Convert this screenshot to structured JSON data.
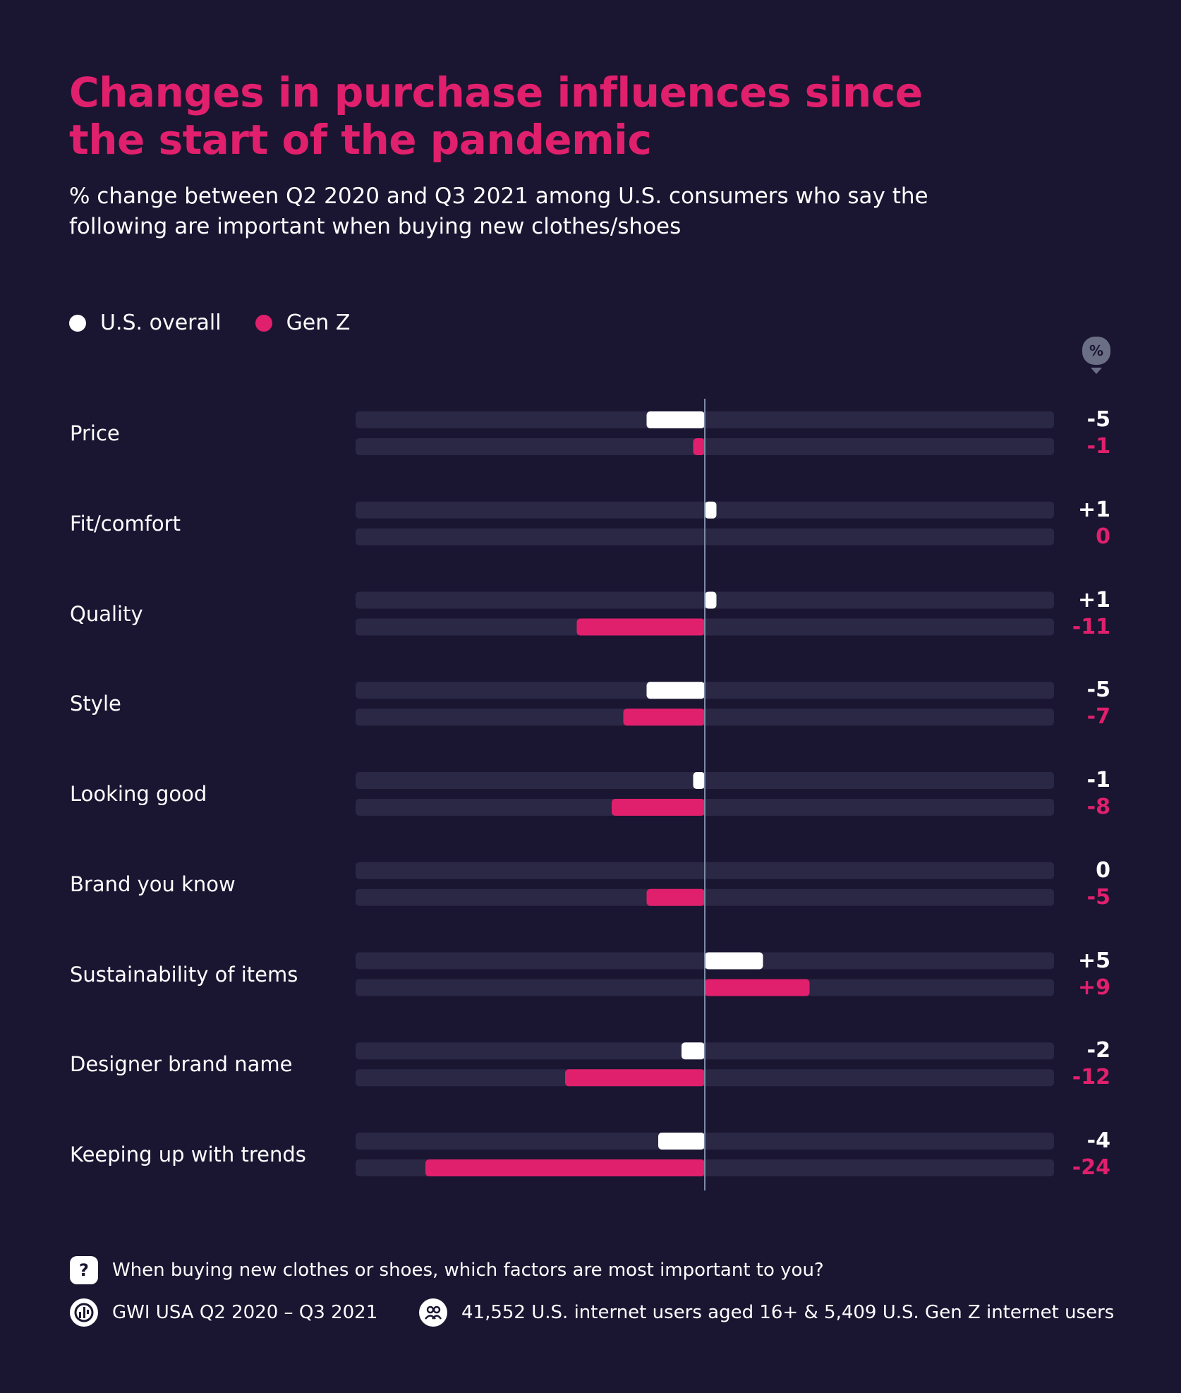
{
  "chart_data": {
    "type": "bar",
    "orientation": "horizontal-diverging",
    "title": "Changes in purchase influences since the start of the pandemic",
    "subtitle": "% change between Q2 2020 and Q3 2021 among U.S. consumers who say the following are important when buying new clothes/shoes",
    "unit_badge": "%",
    "categories": [
      "Price",
      "Fit/comfort",
      "Quality",
      "Style",
      "Looking good",
      "Brand you know",
      "Sustainability of items",
      "Designer brand name",
      "Keeping up with trends"
    ],
    "series": [
      {
        "name": "U.S. overall",
        "color": "#ffffff",
        "values": [
          -5,
          1,
          1,
          -5,
          -1,
          0,
          5,
          -2,
          -4
        ],
        "labels": [
          "-5",
          "+1",
          "+1",
          "-5",
          "-1",
          "0",
          "+5",
          "-2",
          "-4"
        ]
      },
      {
        "name": "Gen Z",
        "color": "#e0206d",
        "values": [
          -1,
          0,
          -11,
          -7,
          -8,
          -5,
          9,
          -12,
          -24
        ],
        "labels": [
          "-1",
          "0",
          "-11",
          "-7",
          "-8",
          "-5",
          "+9",
          "-12",
          "-24"
        ]
      }
    ],
    "xlim": [
      -30,
      30
    ],
    "legend_position": "top-left"
  },
  "colors": {
    "background": "#1a1531",
    "track": "#2a2845",
    "accent": "#e0206d",
    "axis": "#7e8aa6"
  },
  "footer": {
    "question_icon": "question-icon",
    "question": "When buying new clothes or shoes, which factors are most important to you?",
    "source_icon": "gwi-logo-icon",
    "source": "GWI USA Q2 2020 – Q3 2021",
    "sample_icon": "users-icon",
    "sample": "41,552 U.S. internet users aged 16+ & 5,409 U.S. Gen Z internet users"
  }
}
